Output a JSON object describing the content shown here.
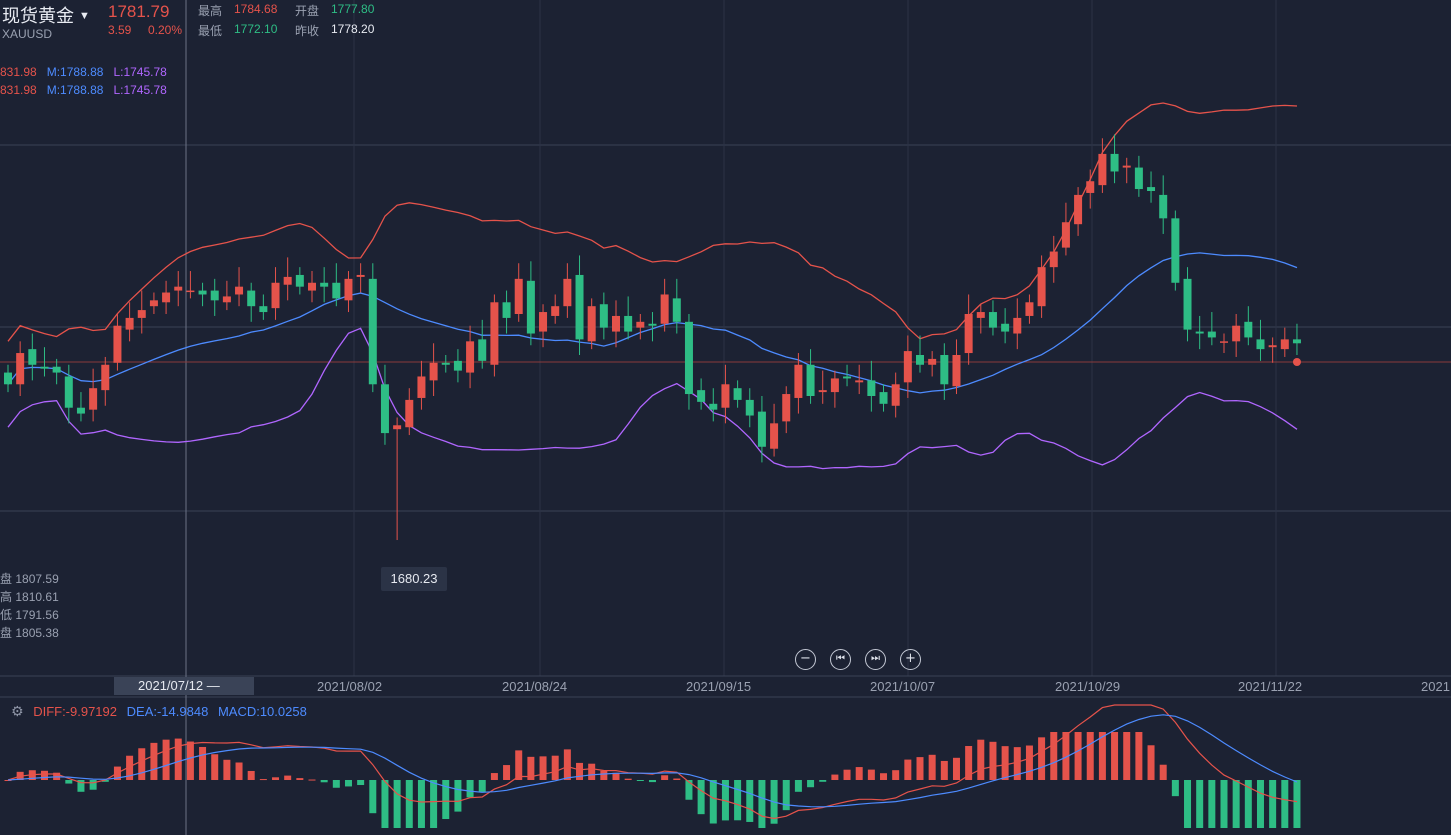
{
  "header": {
    "title": "现货黄金",
    "symbol": "XAUUSD",
    "price": "1781.79",
    "change": "3.59",
    "change_pct": "0.20%",
    "high_label": "最高",
    "high_value": "1784.68",
    "open_label": "开盘",
    "open_value": "1777.80",
    "low_label": "最低",
    "low_value": "1772.10",
    "prev_label": "昨收",
    "prev_value": "1778.20"
  },
  "indicator_lines": [
    {
      "u": "831.98",
      "m": "M:1788.88",
      "l": "L:1745.78"
    },
    {
      "u": "831.98",
      "m": "M:1788.88",
      "l": "L:1745.78"
    }
  ],
  "ohlc_panel": [
    {
      "label": "盘",
      "value": "1807.59"
    },
    {
      "label": "高",
      "value": "1810.61"
    },
    {
      "label": "低",
      "value": "1791.56"
    },
    {
      "label": "盘",
      "value": "1805.38"
    }
  ],
  "cursor_date": "2021/07/12",
  "low_marker": "1680.23",
  "x_labels": [
    "2021/08/02",
    "2021/08/24",
    "2021/09/15",
    "2021/10/07",
    "2021/10/29",
    "2021/11/22",
    "2021"
  ],
  "controls": {
    "zoom_out": "−",
    "prev": "⏮",
    "next": "⏭",
    "zoom_in": "+"
  },
  "macd": {
    "diff": "DIFF:-9.97192",
    "dea": "DEA:-14.9848",
    "macd": "MACD:10.0258"
  },
  "colors": {
    "up": "#e5534b",
    "down": "#2ebd85",
    "mid": "#4d8bff",
    "lower": "#b066ff",
    "upper": "#e5534b",
    "bg": "#1c2233"
  },
  "chart_data": {
    "type": "candlestick",
    "x_range": [
      "2021-06-29",
      "2021-12-07"
    ],
    "y_range": [
      1670,
      1880
    ],
    "candles_close_approx": [
      1760,
      1776,
      1770,
      1768,
      1766,
      1748,
      1745,
      1758,
      1770,
      1790,
      1794,
      1798,
      1803,
      1807,
      1810,
      1808,
      1806,
      1803,
      1805,
      1810,
      1800,
      1797,
      1812,
      1815,
      1810,
      1812,
      1810,
      1804,
      1814,
      1816,
      1760,
      1735,
      1739,
      1752,
      1764,
      1771,
      1770,
      1767,
      1782,
      1772,
      1802,
      1794,
      1814,
      1786,
      1797,
      1800,
      1814,
      1783,
      1800,
      1789,
      1795,
      1787,
      1792,
      1790,
      1806,
      1792,
      1755,
      1751,
      1747,
      1760,
      1752,
      1744,
      1728,
      1740,
      1755,
      1770,
      1754,
      1757,
      1763,
      1763,
      1762,
      1754,
      1750,
      1760,
      1777,
      1770,
      1773,
      1760,
      1775,
      1796,
      1797,
      1789,
      1787,
      1794,
      1802,
      1820,
      1828,
      1843,
      1857,
      1864,
      1878,
      1869,
      1872,
      1860,
      1859,
      1845,
      1812,
      1788,
      1786,
      1784,
      1782,
      1790,
      1784,
      1778,
      1780,
      1783,
      1781
    ]
  }
}
